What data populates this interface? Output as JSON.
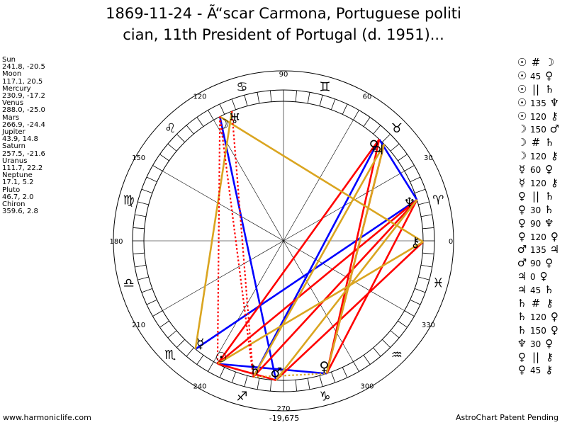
{
  "title": {
    "line1": "1869-11-24 - Ã“scar Carmona, Portuguese politi",
    "line2": "cian, 11th President of Portugal (d. 1951)..."
  },
  "planet_list": [
    {
      "name": "Sun",
      "coords": "241.8, -20.5"
    },
    {
      "name": "Moon",
      "coords": "117.1, 20.5"
    },
    {
      "name": "Mercury",
      "coords": "230.9, -17.2"
    },
    {
      "name": "Venus",
      "coords": "288.0, -25.0"
    },
    {
      "name": "Mars",
      "coords": "266.9, -24.4"
    },
    {
      "name": "Jupiter",
      "coords": "43.9, 14.8"
    },
    {
      "name": "Saturn",
      "coords": "257.5, -21.6"
    },
    {
      "name": "Uranus",
      "coords": "111.7, 22.2"
    },
    {
      "name": "Neptune",
      "coords": "17.1, 5.2"
    },
    {
      "name": "Pluto",
      "coords": "46.7, 2.0"
    },
    {
      "name": "Chiron",
      "coords": "359.6, 2.8"
    }
  ],
  "aspect_list": [
    {
      "p1": "☉",
      "asp": "#",
      "p2": "☽"
    },
    {
      "p1": "☉",
      "asp": "45",
      "p2": "♀"
    },
    {
      "p1": "☉",
      "asp": "||",
      "p2": "♄"
    },
    {
      "p1": "☉",
      "asp": "135",
      "p2": "♆"
    },
    {
      "p1": "☉",
      "asp": "120",
      "p2": "⚷"
    },
    {
      "p1": "☽",
      "asp": "150",
      "p2": "♂"
    },
    {
      "p1": "☽",
      "asp": "#",
      "p2": "♄"
    },
    {
      "p1": "☽",
      "asp": "120",
      "p2": "⚷"
    },
    {
      "p1": "☿",
      "asp": "60",
      "p2": "♀"
    },
    {
      "p1": "☿",
      "asp": "120",
      "p2": "⚷"
    },
    {
      "p1": "♀",
      "asp": "||",
      "p2": "♄"
    },
    {
      "p1": "♀",
      "asp": "30",
      "p2": "♄"
    },
    {
      "p1": "♀",
      "asp": "90",
      "p2": "♆"
    },
    {
      "p1": "♀",
      "asp": "120",
      "p2": "♀"
    },
    {
      "p1": "♂",
      "asp": "135",
      "p2": "♃"
    },
    {
      "p1": "♂",
      "asp": "90",
      "p2": "♀"
    },
    {
      "p1": "♃",
      "asp": "0",
      "p2": "♀"
    },
    {
      "p1": "♃",
      "asp": "45",
      "p2": "♄"
    },
    {
      "p1": "♄",
      "asp": "#",
      "p2": "⚷"
    },
    {
      "p1": "♄",
      "asp": "120",
      "p2": "♀"
    },
    {
      "p1": "♄",
      "asp": "150",
      "p2": "♀"
    },
    {
      "p1": "♆",
      "asp": "30",
      "p2": "♀"
    },
    {
      "p1": "♀",
      "asp": "||",
      "p2": "⚷"
    },
    {
      "p1": "♀",
      "asp": "45",
      "p2": "⚷"
    }
  ],
  "wheel": {
    "degree_labels": [
      "90",
      "60",
      "30",
      "0",
      "330",
      "300",
      "270",
      "240",
      "210",
      "180",
      "150",
      "120"
    ],
    "zodiac": [
      {
        "sign": "aries",
        "glyph": "♈"
      },
      {
        "sign": "taurus",
        "glyph": "♉"
      },
      {
        "sign": "gemini",
        "glyph": "♊"
      },
      {
        "sign": "cancer",
        "glyph": "♋"
      },
      {
        "sign": "leo",
        "glyph": "♌"
      },
      {
        "sign": "virgo",
        "glyph": "♍"
      },
      {
        "sign": "libra",
        "glyph": "♎"
      },
      {
        "sign": "scorpio",
        "glyph": "♏"
      },
      {
        "sign": "sagittarius",
        "glyph": "♐"
      },
      {
        "sign": "capricorn",
        "glyph": "♑"
      },
      {
        "sign": "aquarius",
        "glyph": "♒"
      },
      {
        "sign": "pisces",
        "glyph": "♓"
      }
    ],
    "bottom_value": "-19,675",
    "planets": [
      {
        "name": "Sun",
        "glyph": "☉",
        "lon": 241.8
      },
      {
        "name": "Moon",
        "glyph": "☽",
        "lon": 117.1
      },
      {
        "name": "Mercury",
        "glyph": "☿",
        "lon": 230.9
      },
      {
        "name": "Venus",
        "glyph": "♀",
        "lon": 288.0
      },
      {
        "name": "Mars",
        "glyph": "♂",
        "lon": 266.9
      },
      {
        "name": "Jupiter",
        "glyph": "♃",
        "lon": 43.9
      },
      {
        "name": "Saturn",
        "glyph": "♄",
        "lon": 257.5
      },
      {
        "name": "Uranus",
        "glyph": "♅",
        "lon": 111.7
      },
      {
        "name": "Neptune",
        "glyph": "♆",
        "lon": 17.1
      },
      {
        "name": "Pluto",
        "glyph": "♀",
        "lon": 46.7
      },
      {
        "name": "Chiron",
        "glyph": "⚷",
        "lon": 359.6
      }
    ],
    "aspect_lines": [
      {
        "from": "Moon",
        "to": "Mars",
        "color": "#0000ff",
        "style": "solid"
      },
      {
        "from": "Neptune",
        "to": "Pluto",
        "color": "#0000ff",
        "style": "solid"
      },
      {
        "from": "Pluto",
        "to": "Saturn",
        "color": "#0000ff",
        "style": "solid"
      },
      {
        "from": "Sun",
        "to": "Venus",
        "color": "#0000ff",
        "style": "solid"
      },
      {
        "from": "Mercury",
        "to": "Neptune",
        "color": "#0000ff",
        "style": "solid"
      },
      {
        "from": "Sun",
        "to": "Neptune",
        "color": "#ff0000",
        "style": "solid"
      },
      {
        "from": "Sun",
        "to": "Pluto",
        "color": "#ff0000",
        "style": "solid"
      },
      {
        "from": "Sun",
        "to": "Mars",
        "color": "#ff0000",
        "style": "solid"
      },
      {
        "from": "Mars",
        "to": "Chiron",
        "color": "#ff0000",
        "style": "solid"
      },
      {
        "from": "Venus",
        "to": "Neptune",
        "color": "#ff0000",
        "style": "solid"
      },
      {
        "from": "Venus",
        "to": "Jupiter",
        "color": "#ff0000",
        "style": "solid"
      },
      {
        "from": "Venus",
        "to": "Pluto",
        "color": "#ff0000",
        "style": "solid"
      },
      {
        "from": "Saturn",
        "to": "Neptune",
        "color": "#ff0000",
        "style": "solid"
      },
      {
        "from": "Moon",
        "to": "Chiron",
        "color": "#daa520",
        "style": "solid"
      },
      {
        "from": "Mercury",
        "to": "Uranus",
        "color": "#daa520",
        "style": "solid"
      },
      {
        "from": "Sun",
        "to": "Chiron",
        "color": "#daa520",
        "style": "solid"
      },
      {
        "from": "Saturn",
        "to": "Jupiter",
        "color": "#daa520",
        "style": "solid"
      },
      {
        "from": "Venus",
        "to": "Jupiter",
        "color": "#daa520",
        "style": "solid"
      },
      {
        "from": "Mars",
        "to": "Neptune",
        "color": "#daa520",
        "style": "solid"
      },
      {
        "from": "Saturn",
        "to": "Venus",
        "color": "#daa520",
        "style": "dotted"
      },
      {
        "from": "Moon",
        "to": "Sun",
        "color": "#ff0000",
        "style": "dotted"
      },
      {
        "from": "Moon",
        "to": "Saturn",
        "color": "#ff0000",
        "style": "dotted"
      },
      {
        "from": "Uranus",
        "to": "Saturn",
        "color": "#ff0000",
        "style": "dotted"
      }
    ]
  },
  "footer": {
    "left": "www.harmoniclife.com",
    "right": "AstroChart Patent Pending"
  }
}
